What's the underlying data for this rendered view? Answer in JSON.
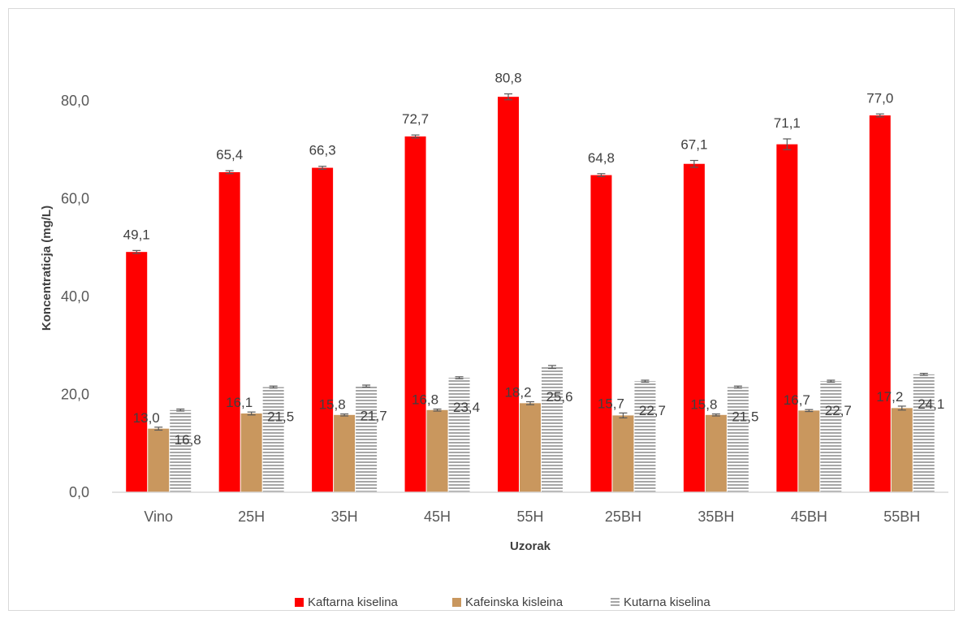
{
  "chart_data": {
    "type": "bar",
    "title": "",
    "xlabel": "Uzorak",
    "ylabel": "Koncentraticja (mg/L)",
    "ylim": [
      0,
      80
    ],
    "yticks": [
      "0,0",
      "20,0",
      "40,0",
      "60,0",
      "80,0"
    ],
    "ytick_values": [
      0,
      20,
      40,
      60,
      80
    ],
    "categories": [
      "Vino",
      "25H",
      "35H",
      "45H",
      "55H",
      "25BH",
      "35BH",
      "45BH",
      "55BH"
    ],
    "series": [
      {
        "name": "Kaftarna kiselina",
        "color": "#ff0000",
        "pattern": "solid",
        "values": [
          49.1,
          65.4,
          66.3,
          72.7,
          80.8,
          64.8,
          67.1,
          71.1,
          77.0
        ],
        "labels": [
          "49,1",
          "65,4",
          "66,3",
          "72,7",
          "80,8",
          "64,8",
          "67,1",
          "71,1",
          "77,0"
        ],
        "errors": [
          0.3,
          0.3,
          0.3,
          0.3,
          0.6,
          0.3,
          0.7,
          1.1,
          0.3
        ]
      },
      {
        "name": "Kafeinska kisleina",
        "color": "#c9975e",
        "pattern": "solid",
        "values": [
          13.0,
          16.1,
          15.8,
          16.8,
          18.2,
          15.7,
          15.8,
          16.7,
          17.2
        ],
        "labels": [
          "13,0",
          "16,1",
          "15,8",
          "16,8",
          "18,2",
          "15,7",
          "15,8",
          "16,7",
          "17,2"
        ],
        "errors": [
          0.3,
          0.3,
          0.2,
          0.2,
          0.3,
          0.5,
          0.2,
          0.2,
          0.4
        ]
      },
      {
        "name": "Kutarna kiselina",
        "color": "#a6a6a6",
        "pattern": "horizontal-stripes",
        "values": [
          16.8,
          21.5,
          21.7,
          23.4,
          25.6,
          22.7,
          21.5,
          22.7,
          24.1
        ],
        "labels": [
          "16,8",
          "21,5",
          "21,7",
          "23,4",
          "25,6",
          "22,7",
          "21,5",
          "22,7",
          "24,1"
        ],
        "errors": [
          0.2,
          0.2,
          0.2,
          0.2,
          0.3,
          0.2,
          0.2,
          0.2,
          0.2
        ]
      }
    ],
    "grid": false,
    "legend_position": "bottom"
  }
}
